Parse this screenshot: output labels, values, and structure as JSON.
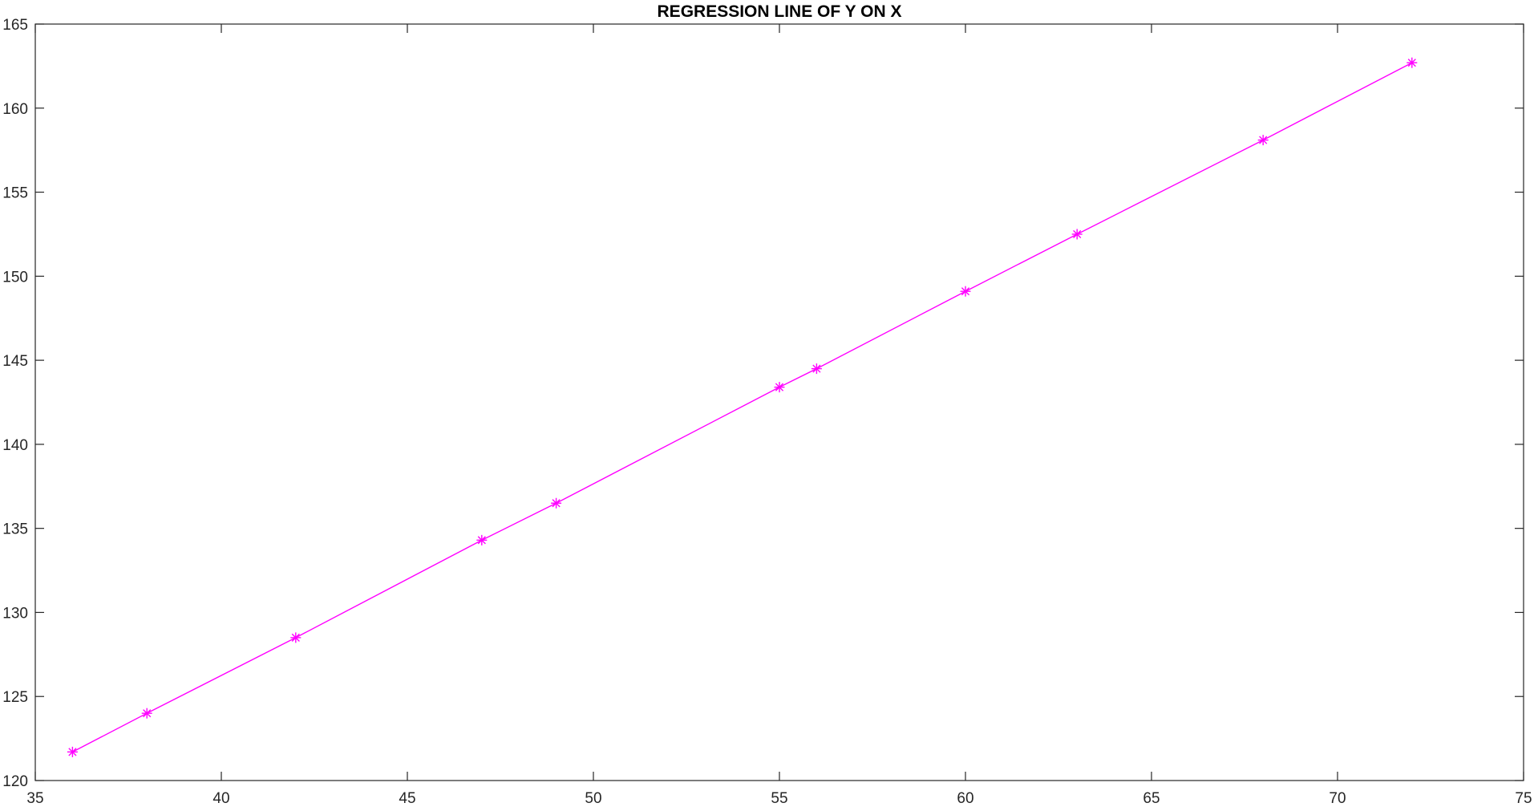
{
  "chart_data": {
    "type": "line",
    "title": "REGRESSION LINE OF Y ON X",
    "xlabel": "",
    "ylabel": "",
    "xlim": [
      35,
      75
    ],
    "ylim": [
      120,
      165
    ],
    "xticks": [
      35,
      40,
      45,
      50,
      55,
      60,
      65,
      70,
      75
    ],
    "yticks": [
      120,
      125,
      130,
      135,
      140,
      145,
      150,
      155,
      160,
      165
    ],
    "grid": false,
    "legend": "none",
    "series": [
      {
        "marker": "asterisk",
        "color": "#ff00ff",
        "x": [
          36,
          38,
          42,
          47,
          49,
          55,
          56,
          60,
          63,
          68,
          72
        ],
        "y": [
          121.7,
          124.0,
          128.5,
          134.3,
          136.5,
          143.4,
          144.5,
          149.1,
          152.5,
          158.1,
          162.7
        ]
      }
    ]
  }
}
